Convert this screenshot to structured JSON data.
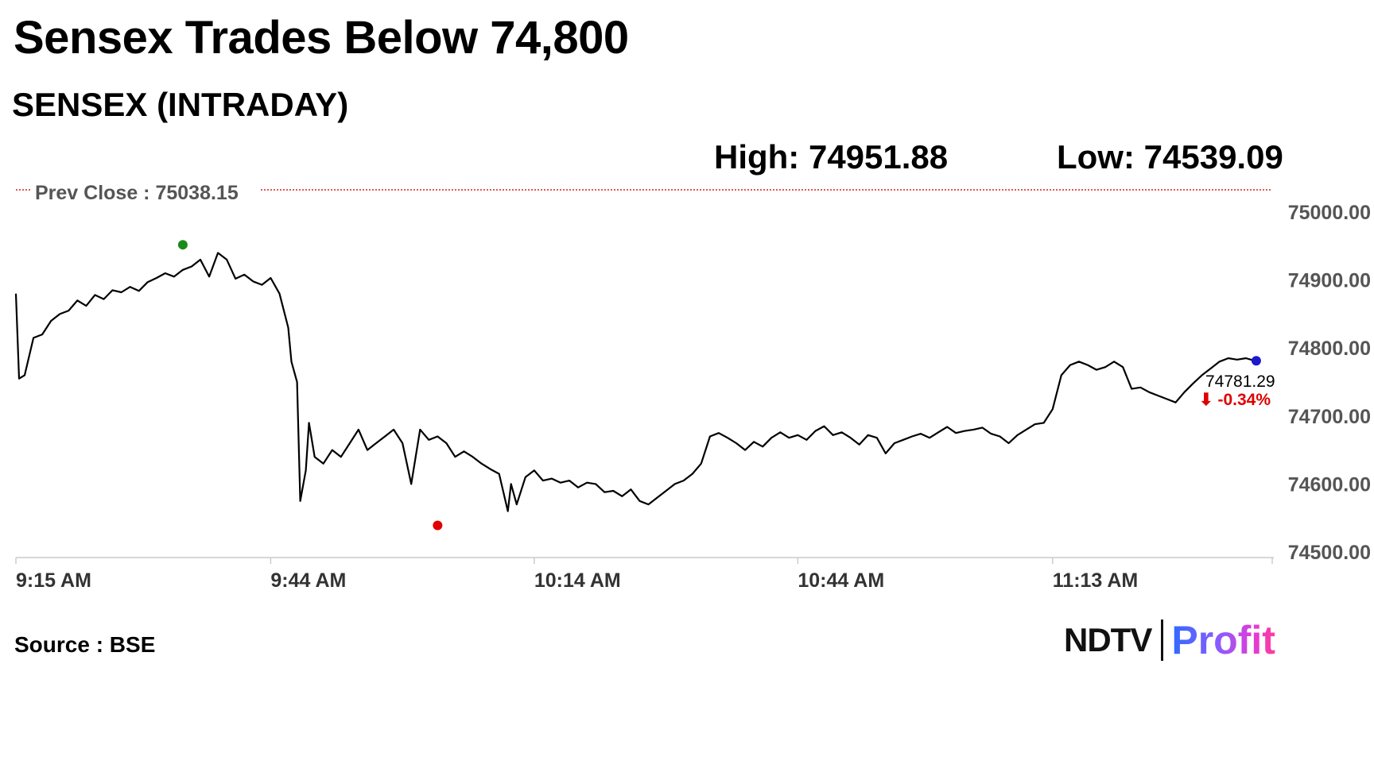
{
  "headline": "Sensex Trades Below 74,800",
  "subtitle": "SENSEX (INTRADAY)",
  "stats": {
    "high_label": "High:",
    "high_value": "74951.88",
    "low_label": "Low:",
    "low_value": "74539.09"
  },
  "source": "Source : BSE",
  "logo": {
    "brand": "NDTV",
    "product": "Profit"
  },
  "colors": {
    "line": "#000000",
    "high_marker": "#1a8a1a",
    "low_marker": "#e00000",
    "last_marker": "#1a1acc",
    "prev_close": "#d0202a",
    "negative_change": "#e00000"
  },
  "chart_data": {
    "type": "line",
    "title": "SENSEX (INTRADAY)",
    "xlabel": "",
    "ylabel": "",
    "ylim": [
      74500,
      75050
    ],
    "x_ticks": [
      "9:15 AM",
      "9:44 AM",
      "10:14 AM",
      "10:44 AM",
      "11:13 AM"
    ],
    "y_ticks": [
      "75000.00",
      "74900.00",
      "74800.00",
      "74700.00",
      "74600.00",
      "74500.00"
    ],
    "grid": false,
    "legend": "none",
    "prev_close": {
      "label": "Prev Close : 75038.15",
      "value": 75038.15
    },
    "last": {
      "value": "74781.29",
      "change": "-0.34%"
    },
    "series": [
      {
        "points": [
          [
            "9:15",
            74880
          ],
          [
            "9:15",
            74755
          ],
          [
            "9:16",
            74760
          ],
          [
            "9:17",
            74815
          ],
          [
            "9:18",
            74820
          ],
          [
            "9:19",
            74840
          ],
          [
            "9:20",
            74850
          ],
          [
            "9:21",
            74855
          ],
          [
            "9:22",
            74870
          ],
          [
            "9:23",
            74862
          ],
          [
            "9:24",
            74878
          ],
          [
            "9:25",
            74872
          ],
          [
            "9:26",
            74885
          ],
          [
            "9:27",
            74882
          ],
          [
            "9:28",
            74890
          ],
          [
            "9:29",
            74884
          ],
          [
            "9:30",
            74897
          ],
          [
            "9:31",
            74903
          ],
          [
            "9:32",
            74910
          ],
          [
            "9:33",
            74905
          ],
          [
            "9:34",
            74915
          ],
          [
            "9:35",
            74920
          ],
          [
            "9:36",
            74930
          ],
          [
            "9:37",
            74905
          ],
          [
            "9:38",
            74940
          ],
          [
            "9:39",
            74930
          ],
          [
            "9:40",
            74902
          ],
          [
            "9:41",
            74908
          ],
          [
            "9:42",
            74898
          ],
          [
            "9:43",
            74893
          ],
          [
            "9:44",
            74903
          ],
          [
            "9:45",
            74880
          ],
          [
            "9:46",
            74830
          ],
          [
            "9:46",
            74780
          ],
          [
            "9:47",
            74750
          ],
          [
            "9:47",
            74575
          ],
          [
            "9:48",
            74620
          ],
          [
            "9:48",
            74690
          ],
          [
            "9:49",
            74640
          ],
          [
            "9:50",
            74630
          ],
          [
            "9:51",
            74650
          ],
          [
            "9:52",
            74640
          ],
          [
            "9:53",
            74660
          ],
          [
            "9:54",
            74680
          ],
          [
            "9:55",
            74650
          ],
          [
            "9:56",
            74660
          ],
          [
            "9:57",
            74670
          ],
          [
            "9:58",
            74680
          ],
          [
            "9:59",
            74660
          ],
          [
            "10:00",
            74600
          ],
          [
            "10:01",
            74680
          ],
          [
            "10:02",
            74665
          ],
          [
            "10:03",
            74670
          ],
          [
            "10:04",
            74660
          ],
          [
            "10:05",
            74640
          ],
          [
            "10:06",
            74648
          ],
          [
            "10:07",
            74640
          ],
          [
            "10:08",
            74630
          ],
          [
            "10:09",
            74622
          ],
          [
            "10:10",
            74615
          ],
          [
            "10:11",
            74560
          ],
          [
            "10:11",
            74600
          ],
          [
            "10:12",
            74570
          ],
          [
            "10:13",
            74610
          ],
          [
            "10:14",
            74620
          ],
          [
            "10:15",
            74605
          ],
          [
            "10:16",
            74608
          ],
          [
            "10:17",
            74602
          ],
          [
            "10:18",
            74605
          ],
          [
            "10:19",
            74595
          ],
          [
            "10:20",
            74602
          ],
          [
            "10:21",
            74600
          ],
          [
            "10:22",
            74588
          ],
          [
            "10:23",
            74590
          ],
          [
            "10:24",
            74582
          ],
          [
            "10:25",
            74592
          ],
          [
            "10:26",
            74575
          ],
          [
            "10:27",
            74570
          ],
          [
            "10:28",
            74580
          ],
          [
            "10:29",
            74590
          ],
          [
            "10:30",
            74600
          ],
          [
            "10:31",
            74605
          ],
          [
            "10:32",
            74615
          ],
          [
            "10:33",
            74630
          ],
          [
            "10:34",
            74670
          ],
          [
            "10:35",
            74675
          ],
          [
            "10:36",
            74668
          ],
          [
            "10:37",
            74660
          ],
          [
            "10:38",
            74650
          ],
          [
            "10:39",
            74662
          ],
          [
            "10:40",
            74655
          ],
          [
            "10:41",
            74668
          ],
          [
            "10:42",
            74676
          ],
          [
            "10:43",
            74668
          ],
          [
            "10:44",
            74672
          ],
          [
            "10:45",
            74665
          ],
          [
            "10:46",
            74678
          ],
          [
            "10:47",
            74685
          ],
          [
            "10:48",
            74672
          ],
          [
            "10:49",
            74676
          ],
          [
            "10:50",
            74668
          ],
          [
            "10:51",
            74658
          ],
          [
            "10:52",
            74672
          ],
          [
            "10:53",
            74668
          ],
          [
            "10:54",
            74645
          ],
          [
            "10:55",
            74660
          ],
          [
            "10:56",
            74665
          ],
          [
            "10:57",
            74670
          ],
          [
            "10:58",
            74674
          ],
          [
            "10:59",
            74668
          ],
          [
            "11:00",
            74676
          ],
          [
            "11:01",
            74684
          ],
          [
            "11:02",
            74675
          ],
          [
            "11:03",
            74678
          ],
          [
            "11:04",
            74680
          ],
          [
            "11:05",
            74683
          ],
          [
            "11:06",
            74674
          ],
          [
            "11:07",
            74670
          ],
          [
            "11:08",
            74660
          ],
          [
            "11:09",
            74672
          ],
          [
            "11:10",
            74680
          ],
          [
            "11:11",
            74688
          ],
          [
            "11:12",
            74690
          ],
          [
            "11:13",
            74710
          ],
          [
            "11:14",
            74760
          ],
          [
            "11:15",
            74775
          ],
          [
            "11:16",
            74780
          ],
          [
            "11:17",
            74775
          ],
          [
            "11:18",
            74768
          ],
          [
            "11:19",
            74772
          ],
          [
            "11:20",
            74780
          ],
          [
            "11:21",
            74772
          ],
          [
            "11:22",
            74740
          ],
          [
            "11:23",
            74742
          ],
          [
            "11:24",
            74735
          ],
          [
            "11:25",
            74730
          ],
          [
            "11:26",
            74725
          ],
          [
            "11:27",
            74720
          ],
          [
            "11:28",
            74735
          ],
          [
            "11:29",
            74748
          ],
          [
            "11:30",
            74760
          ],
          [
            "11:31",
            74770
          ],
          [
            "11:32",
            74780
          ],
          [
            "11:33",
            74785
          ],
          [
            "11:34",
            74783
          ],
          [
            "11:35",
            74785
          ],
          [
            "11:36",
            74781.29
          ]
        ]
      }
    ],
    "high_point": {
      "x": "9:34",
      "y": 74951.88
    },
    "low_point": {
      "x": "10:03",
      "y": 74539.09
    }
  }
}
